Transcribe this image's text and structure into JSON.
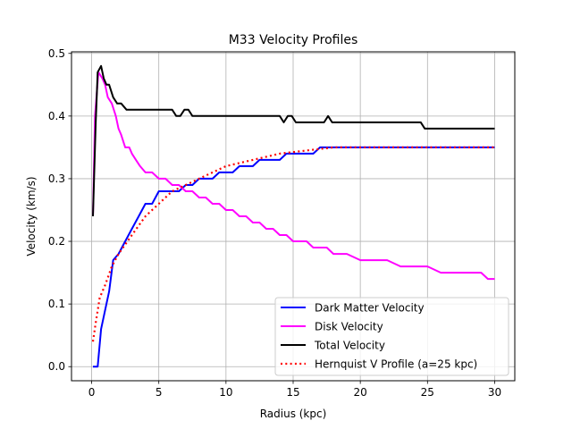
{
  "chart_data": {
    "type": "line",
    "title": "M33 Velocity Profiles",
    "xlabel": "Radius (kpc)",
    "ylabel": "Velocity (km/s)",
    "xlim": [
      -1.5,
      31.5
    ],
    "ylim": [
      -0.0225,
      0.5025
    ],
    "xticks": [
      0,
      5,
      10,
      15,
      20,
      25,
      30
    ],
    "yticks": [
      0.0,
      0.1,
      0.2,
      0.3,
      0.4,
      0.5
    ],
    "xtick_labels": [
      "0",
      "5",
      "10",
      "15",
      "20",
      "25",
      "30"
    ],
    "ytick_labels": [
      "0.0",
      "0.1",
      "0.2",
      "0.3",
      "0.4",
      "0.5"
    ],
    "grid": true,
    "legend_position": "lower-right",
    "series": [
      {
        "name": "Dark Matter Velocity",
        "color": "#0000ff",
        "style": "solid",
        "x": [
          0.1,
          0.45,
          0.7,
          1.0,
          1.3,
          1.6,
          2.0,
          2.5,
          3.0,
          3.5,
          4.0,
          4.5,
          5.0,
          5.5,
          6.0,
          6.5,
          7.0,
          7.5,
          8.0,
          8.5,
          9.0,
          9.5,
          10.0,
          10.5,
          11.0,
          11.5,
          12.0,
          12.5,
          13.0,
          13.5,
          14.0,
          14.5,
          15.0,
          15.5,
          16.0,
          16.5,
          17.0,
          17.5,
          18.0,
          19.0,
          20.0,
          21.0,
          22.0,
          23.0,
          24.0,
          25.0,
          26.0,
          27.0,
          28.0,
          29.0,
          30.0
        ],
        "y": [
          0.0,
          0.0,
          0.06,
          0.09,
          0.12,
          0.17,
          0.18,
          0.2,
          0.22,
          0.24,
          0.26,
          0.26,
          0.28,
          0.28,
          0.28,
          0.28,
          0.29,
          0.29,
          0.3,
          0.3,
          0.3,
          0.31,
          0.31,
          0.31,
          0.32,
          0.32,
          0.32,
          0.33,
          0.33,
          0.33,
          0.33,
          0.34,
          0.34,
          0.34,
          0.34,
          0.34,
          0.35,
          0.35,
          0.35,
          0.35,
          0.35,
          0.35,
          0.35,
          0.35,
          0.35,
          0.35,
          0.35,
          0.35,
          0.35,
          0.35,
          0.35
        ]
      },
      {
        "name": "Disk Velocity",
        "color": "#ff00ff",
        "style": "solid",
        "x": [
          0.1,
          0.25,
          0.5,
          0.8,
          1.0,
          1.2,
          1.5,
          1.8,
          2.0,
          2.2,
          2.5,
          2.8,
          3.0,
          3.3,
          3.6,
          4.0,
          4.5,
          5.0,
          5.5,
          6.0,
          6.5,
          7.0,
          7.5,
          8.0,
          8.5,
          9.0,
          9.5,
          10.0,
          10.5,
          11.0,
          11.5,
          12.0,
          12.5,
          13.0,
          13.5,
          14.0,
          14.5,
          15.0,
          15.5,
          16.0,
          16.5,
          17.0,
          17.5,
          18.0,
          19.0,
          20.0,
          21.0,
          22.0,
          23.0,
          24.0,
          25.0,
          26.0,
          27.0,
          28.0,
          29.0,
          29.5,
          30.0
        ],
        "y": [
          0.24,
          0.4,
          0.47,
          0.46,
          0.45,
          0.43,
          0.42,
          0.4,
          0.38,
          0.37,
          0.35,
          0.35,
          0.34,
          0.33,
          0.32,
          0.31,
          0.31,
          0.3,
          0.3,
          0.29,
          0.29,
          0.28,
          0.28,
          0.27,
          0.27,
          0.26,
          0.26,
          0.25,
          0.25,
          0.24,
          0.24,
          0.23,
          0.23,
          0.22,
          0.22,
          0.21,
          0.21,
          0.2,
          0.2,
          0.2,
          0.19,
          0.19,
          0.19,
          0.18,
          0.18,
          0.17,
          0.17,
          0.17,
          0.16,
          0.16,
          0.16,
          0.15,
          0.15,
          0.15,
          0.15,
          0.14,
          0.14
        ]
      },
      {
        "name": "Total Velocity",
        "color": "#000000",
        "style": "solid",
        "x": [
          0.1,
          0.3,
          0.45,
          0.7,
          0.9,
          1.1,
          1.3,
          1.6,
          1.9,
          2.2,
          2.6,
          3.0,
          3.5,
          4.0,
          5.0,
          6.0,
          6.3,
          6.6,
          6.9,
          7.2,
          7.5,
          8.0,
          9.0,
          10.0,
          11.0,
          12.0,
          13.0,
          13.6,
          14.0,
          14.3,
          14.6,
          14.9,
          15.2,
          15.6,
          16.0,
          17.0,
          17.3,
          17.6,
          17.9,
          18.2,
          19.0,
          20.0,
          21.0,
          22.0,
          23.0,
          24.0,
          24.5,
          24.8,
          25.2,
          26.0,
          27.0,
          28.0,
          29.0,
          30.0
        ],
        "y": [
          0.24,
          0.39,
          0.47,
          0.48,
          0.46,
          0.45,
          0.45,
          0.43,
          0.42,
          0.42,
          0.41,
          0.41,
          0.41,
          0.41,
          0.41,
          0.41,
          0.4,
          0.4,
          0.41,
          0.41,
          0.4,
          0.4,
          0.4,
          0.4,
          0.4,
          0.4,
          0.4,
          0.4,
          0.4,
          0.39,
          0.4,
          0.4,
          0.39,
          0.39,
          0.39,
          0.39,
          0.39,
          0.4,
          0.39,
          0.39,
          0.39,
          0.39,
          0.39,
          0.39,
          0.39,
          0.39,
          0.39,
          0.38,
          0.38,
          0.38,
          0.38,
          0.38,
          0.38,
          0.38
        ]
      },
      {
        "name": "Hernquist V Profile (a=25 kpc)",
        "color": "#ff0000",
        "style": "dotted",
        "x": [
          0.1,
          0.3,
          0.6,
          1.0,
          1.5,
          2.0,
          3.0,
          4.0,
          5.0,
          6.0,
          7.0,
          8.0,
          9.0,
          10.0,
          12.0,
          14.0,
          16.0,
          18.0,
          20.0,
          22.0,
          24.0,
          26.0,
          28.0,
          30.0
        ],
        "y": [
          0.04,
          0.07,
          0.11,
          0.13,
          0.16,
          0.18,
          0.21,
          0.24,
          0.26,
          0.28,
          0.29,
          0.3,
          0.31,
          0.32,
          0.33,
          0.34,
          0.345,
          0.35,
          0.35,
          0.35,
          0.35,
          0.35,
          0.35,
          0.35
        ]
      }
    ]
  }
}
